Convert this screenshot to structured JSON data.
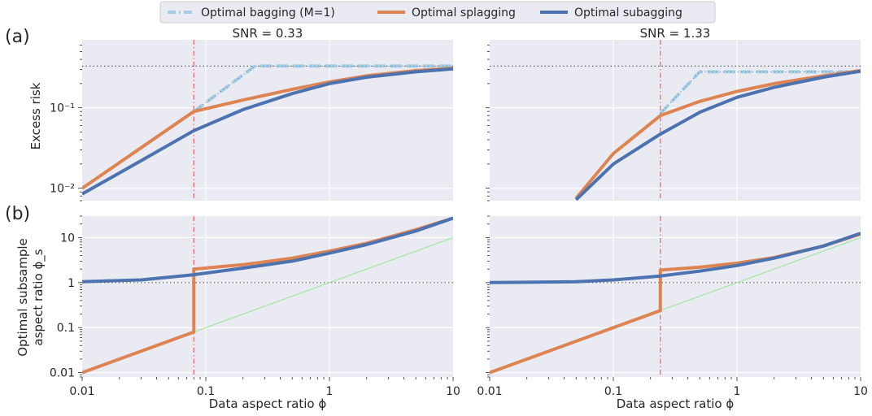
{
  "legend": {
    "items": [
      {
        "label": "Optimal bagging (M=1)",
        "color": "#a6cee3",
        "dash": "dashdot"
      },
      {
        "label": "Optimal splagging",
        "color": "#dd8452",
        "dash": "solid"
      },
      {
        "label": "Optimal subagging",
        "color": "#4c72b0",
        "dash": "solid"
      }
    ]
  },
  "row_labels": {
    "a": "(a)",
    "b": "(b)"
  },
  "panel_titles": [
    "SNR = 0.33",
    "SNR = 1.33"
  ],
  "ylabels": {
    "top": "Excess risk",
    "bottom_line1": "Optimal subsample",
    "bottom_line2": "aspect ratio ϕ_s"
  },
  "xlabel": "Data aspect ratio ϕ",
  "x_ticks": [
    "0.01",
    "0.1",
    "1",
    "10"
  ],
  "y_ticks_top": [
    "10⁻²",
    "10⁻¹"
  ],
  "y_ticks_bottom": [
    "0.01",
    "0.1",
    "1",
    "10"
  ],
  "colors": {
    "background": "#eaeaf2",
    "grid": "#ffffff",
    "bagging": "#a6cee3",
    "splagging": "#dd8452",
    "subagging": "#4c72b0",
    "vline": "#e8797a",
    "identity": "#a8e6a8",
    "hline": "#555555"
  },
  "chart_data": [
    {
      "type": "line",
      "title": "SNR = 0.33",
      "xlabel": "",
      "ylabel": "Excess risk",
      "x_scale": "log",
      "y_scale": "log",
      "xlim": [
        0.01,
        10
      ],
      "ylim": [
        0.007,
        0.7
      ],
      "reference_hline": 0.33,
      "reference_vline": 0.08,
      "series": [
        {
          "name": "Optimal bagging (M=1)",
          "x": [
            0.08,
            0.25,
            10
          ],
          "y": [
            0.09,
            0.33,
            0.33
          ]
        },
        {
          "name": "Optimal splagging",
          "x": [
            0.01,
            0.08,
            0.2,
            0.5,
            1,
            2,
            5,
            10
          ],
          "y": [
            0.01,
            0.09,
            0.125,
            0.17,
            0.21,
            0.25,
            0.29,
            0.31
          ]
        },
        {
          "name": "Optimal subagging",
          "x": [
            0.01,
            0.03,
            0.08,
            0.2,
            0.5,
            1,
            2,
            5,
            10
          ],
          "y": [
            0.0085,
            0.022,
            0.052,
            0.095,
            0.15,
            0.2,
            0.24,
            0.28,
            0.305
          ]
        }
      ]
    },
    {
      "type": "line",
      "title": "SNR = 1.33",
      "xlabel": "",
      "ylabel": "",
      "x_scale": "log",
      "y_scale": "log",
      "xlim": [
        0.01,
        10
      ],
      "ylim": [
        0.007,
        0.7
      ],
      "reference_hline": 0.33,
      "reference_vline": 0.24,
      "series": [
        {
          "name": "Optimal bagging (M=1)",
          "x": [
            0.24,
            0.5,
            10
          ],
          "y": [
            0.085,
            0.28,
            0.28
          ]
        },
        {
          "name": "Optimal splagging",
          "x": [
            0.05,
            0.1,
            0.24,
            0.5,
            1,
            2,
            5,
            10
          ],
          "y": [
            0.0075,
            0.027,
            0.08,
            0.12,
            0.16,
            0.2,
            0.25,
            0.29
          ]
        },
        {
          "name": "Optimal subagging",
          "x": [
            0.05,
            0.1,
            0.24,
            0.5,
            1,
            2,
            5,
            10
          ],
          "y": [
            0.0072,
            0.02,
            0.047,
            0.088,
            0.135,
            0.18,
            0.24,
            0.285
          ]
        }
      ]
    },
    {
      "type": "line",
      "title": "",
      "xlabel": "Data aspect ratio ϕ",
      "ylabel": "Optimal subsample aspect ratio ϕ_s",
      "x_scale": "log",
      "y_scale": "log",
      "xlim": [
        0.01,
        10
      ],
      "ylim": [
        0.008,
        30
      ],
      "reference_hline": 1,
      "reference_vline": 0.08,
      "series": [
        {
          "name": "Optimal splagging",
          "x": [
            0.01,
            0.08,
            0.08,
            0.2,
            0.5,
            1,
            2,
            5,
            10
          ],
          "y": [
            0.01,
            0.08,
            2.0,
            2.5,
            3.5,
            5.0,
            7.5,
            15,
            27
          ]
        },
        {
          "name": "Optimal subagging",
          "x": [
            0.01,
            0.03,
            0.08,
            0.2,
            0.5,
            1,
            2,
            5,
            10
          ],
          "y": [
            1.05,
            1.15,
            1.5,
            2.1,
            3.0,
            4.5,
            7.0,
            14,
            27
          ]
        },
        {
          "name": "",
          "x": [
            0.08,
            10
          ],
          "y": [
            0.08,
            10
          ]
        }
      ]
    },
    {
      "type": "line",
      "title": "",
      "xlabel": "Data aspect ratio ϕ",
      "ylabel": "",
      "x_scale": "log",
      "y_scale": "log",
      "xlim": [
        0.01,
        10
      ],
      "ylim": [
        0.008,
        30
      ],
      "reference_hline": 1,
      "reference_vline": 0.24,
      "series": [
        {
          "name": "Optimal splagging",
          "x": [
            0.01,
            0.24,
            0.24,
            0.5,
            1,
            2,
            5,
            10
          ],
          "y": [
            0.01,
            0.24,
            1.9,
            2.2,
            2.7,
            3.6,
            6.5,
            12
          ]
        },
        {
          "name": "Optimal subagging",
          "x": [
            0.01,
            0.05,
            0.1,
            0.24,
            0.5,
            1,
            2,
            5,
            10
          ],
          "y": [
            1.0,
            1.05,
            1.15,
            1.4,
            1.8,
            2.4,
            3.5,
            6.5,
            12.5
          ]
        },
        {
          "name": "",
          "x": [
            0.24,
            10
          ],
          "y": [
            0.24,
            10
          ]
        }
      ]
    }
  ]
}
